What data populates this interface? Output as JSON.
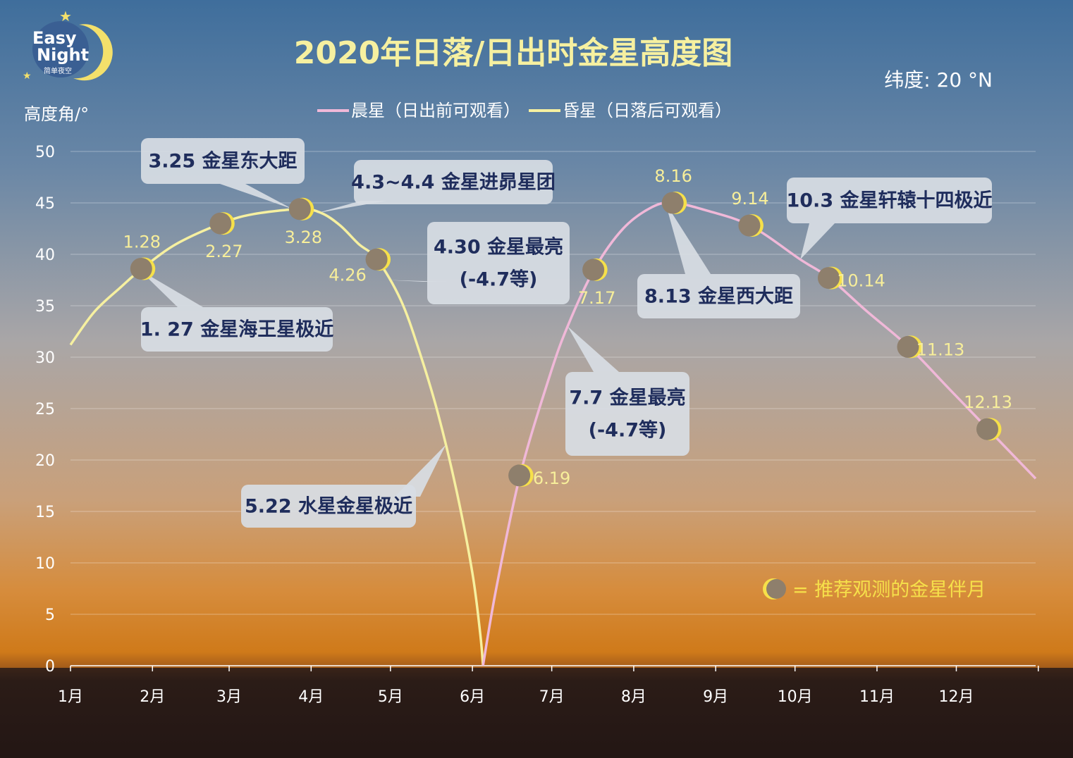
{
  "logo": {
    "line1": "Easy",
    "line2": "Night",
    "sub": "简单夜空"
  },
  "title": "2020年日落/日出时金星高度图",
  "latitude": "纬度:  20 °N",
  "colors": {
    "morning": "#f0b8d8",
    "evening": "#f6f0a0",
    "label": "#f7ee9a",
    "annotation_box": "#d8dde4",
    "annotation_text": "#1f2d5c",
    "moon_disk": "#8e7f6c",
    "moon_crescent": "#f6e04a"
  },
  "legend_note": "= 推荐观测的金星伴月",
  "chart_data": {
    "type": "line",
    "title": "2020年日落/日出时金星高度图",
    "ylabel": "高度角/°",
    "xlabel": "",
    "ylim": [
      0,
      50
    ],
    "yticks": [
      0,
      5,
      10,
      15,
      20,
      25,
      30,
      35,
      40,
      45,
      50
    ],
    "months": [
      "1月",
      "2月",
      "3月",
      "4月",
      "5月",
      "6月",
      "7月",
      "8月",
      "9月",
      "10月",
      "11月",
      "12月"
    ],
    "grid": true,
    "legend_position": "top-center",
    "series": [
      {
        "name": "昏星（日落后可观看）",
        "role": "evening",
        "points": [
          {
            "date": "01-01",
            "alt": 31.2
          },
          {
            "date": "01-10",
            "alt": 34.4
          },
          {
            "date": "01-20",
            "alt": 36.8
          },
          {
            "date": "01-28",
            "alt": 38.6
          },
          {
            "date": "02-10",
            "alt": 41.0
          },
          {
            "date": "02-27",
            "alt": 43.0
          },
          {
            "date": "03-10",
            "alt": 43.9
          },
          {
            "date": "03-28",
            "alt": 44.4
          },
          {
            "date": "04-05",
            "alt": 44.0
          },
          {
            "date": "04-12",
            "alt": 42.8
          },
          {
            "date": "04-19",
            "alt": 41.0
          },
          {
            "date": "04-26",
            "alt": 39.5
          },
          {
            "date": "05-05",
            "alt": 35.5
          },
          {
            "date": "05-12",
            "alt": 30.5
          },
          {
            "date": "05-19",
            "alt": 24.5
          },
          {
            "date": "05-26",
            "alt": 17.0
          },
          {
            "date": "06-01",
            "alt": 9.0
          },
          {
            "date": "06-04",
            "alt": 3.0
          },
          {
            "date": "06-05",
            "alt": 0.0
          }
        ]
      },
      {
        "name": "晨星（日出前可观看）",
        "role": "morning",
        "points": [
          {
            "date": "06-05",
            "alt": 0.0
          },
          {
            "date": "06-10",
            "alt": 7.5
          },
          {
            "date": "06-19",
            "alt": 18.5
          },
          {
            "date": "06-30",
            "alt": 28.0
          },
          {
            "date": "07-07",
            "alt": 33.0
          },
          {
            "date": "07-17",
            "alt": 38.5
          },
          {
            "date": "07-28",
            "alt": 42.5
          },
          {
            "date": "08-08",
            "alt": 44.6
          },
          {
            "date": "08-16",
            "alt": 45.0
          },
          {
            "date": "08-28",
            "alt": 44.3
          },
          {
            "date": "09-14",
            "alt": 42.8
          },
          {
            "date": "10-03",
            "alt": 39.5
          },
          {
            "date": "10-14",
            "alt": 37.7
          },
          {
            "date": "10-28",
            "alt": 34.5
          },
          {
            "date": "11-13",
            "alt": 31.0
          },
          {
            "date": "11-28",
            "alt": 27.0
          },
          {
            "date": "12-13",
            "alt": 23.0
          },
          {
            "date": "12-31",
            "alt": 18.2
          }
        ]
      }
    ],
    "moon_markers": [
      {
        "label": "1.28",
        "date": "01-28",
        "alt": 38.6,
        "label_pos": "above"
      },
      {
        "label": "2.27",
        "date": "02-27",
        "alt": 43.0,
        "label_pos": "below"
      },
      {
        "label": "3.28",
        "date": "03-28",
        "alt": 44.4,
        "label_pos": "below"
      },
      {
        "label": "4.26",
        "date": "04-26",
        "alt": 39.5,
        "label_pos": "below-left"
      },
      {
        "label": "6.19",
        "date": "06-19",
        "alt": 18.5,
        "label_pos": "right"
      },
      {
        "label": "7.17",
        "date": "07-17",
        "alt": 38.5,
        "label_pos": "below"
      },
      {
        "label": "8.16",
        "date": "08-16",
        "alt": 45.0,
        "label_pos": "above"
      },
      {
        "label": "9.14",
        "date": "09-14",
        "alt": 42.8,
        "label_pos": "above"
      },
      {
        "label": "10.14",
        "date": "10-14",
        "alt": 37.7,
        "label_pos": "right"
      },
      {
        "label": "11.13",
        "date": "11-13",
        "alt": 31.0,
        "label_pos": "right"
      },
      {
        "label": "12.13",
        "date": "12-13",
        "alt": 23.0,
        "label_pos": "above"
      }
    ],
    "annotations": [
      {
        "lines": [
          "3.25 金星东大距"
        ],
        "target_date": "03-25",
        "target_alt": 44.4
      },
      {
        "lines": [
          "4.3~4.4 金星进昴星团"
        ],
        "target_date": "04-03",
        "target_alt": 44.0
      },
      {
        "lines": [
          "1. 27 金星海王星极近"
        ],
        "target_date": "01-27",
        "target_alt": 38.5
      },
      {
        "lines": [
          "4.30 金星最亮",
          "(-4.7等)"
        ],
        "target_date": "04-30",
        "target_alt": 37.5
      },
      {
        "lines": [
          "5.22 水星金星极近"
        ],
        "target_date": "05-22",
        "target_alt": 21.5
      },
      {
        "lines": [
          "8.13 金星西大距"
        ],
        "target_date": "08-13",
        "target_alt": 45.0
      },
      {
        "lines": [
          "10.3 金星轩辕十四极近"
        ],
        "target_date": "10-03",
        "target_alt": 39.5
      },
      {
        "lines": [
          "7.7 金星最亮",
          "(-4.7等)"
        ],
        "target_date": "07-07",
        "target_alt": 33.0
      }
    ]
  }
}
